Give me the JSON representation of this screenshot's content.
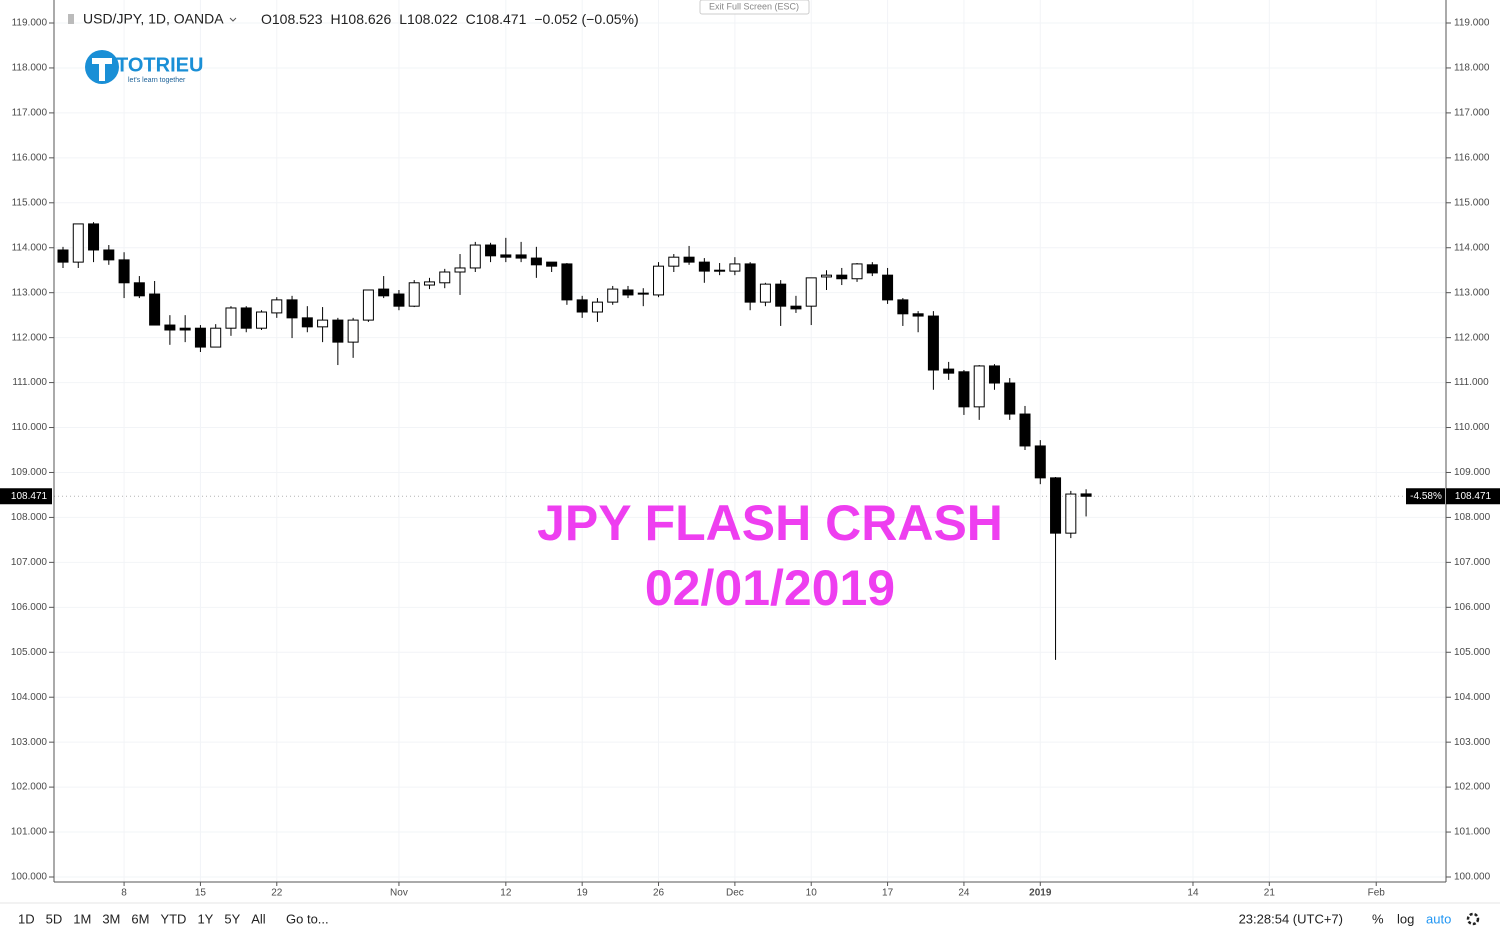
{
  "header": {
    "symbol": "USD/JPY, 1D, OANDA",
    "ohlc_labels": [
      "O",
      "H",
      "L",
      "C"
    ],
    "change": "−0.052 (−0.05%)",
    "exit_fullscreen": "Exit Full Screen (ESC)"
  },
  "logo": {
    "name": "TOTRIEU",
    "tagline": "let's learn together"
  },
  "annotation": {
    "line1": "JPY FLASH CRASH",
    "line2": "02/01/2019"
  },
  "last_price_change": "-4.58%",
  "toolbar": {
    "ranges": [
      "1D",
      "5D",
      "1M",
      "3M",
      "6M",
      "YTD",
      "1Y",
      "5Y",
      "All"
    ],
    "goto": "Go to...",
    "clock": "23:28:54 (UTC+7)",
    "percent": "%",
    "log": "log",
    "auto": "auto"
  },
  "chart_data": {
    "type": "candlestick",
    "up_color": "#ffffff",
    "down_color": "#000000",
    "border_color": "#000000",
    "grid": true,
    "categories": [
      null,
      null,
      null,
      null,
      "8",
      null,
      null,
      null,
      null,
      "15",
      null,
      null,
      null,
      null,
      "22",
      null,
      null,
      null,
      null,
      null,
      null,
      null,
      "Nov",
      null,
      null,
      null,
      null,
      null,
      null,
      "12",
      null,
      null,
      null,
      null,
      "19",
      null,
      null,
      null,
      null,
      "26",
      null,
      null,
      null,
      null,
      "Dec",
      null,
      null,
      null,
      null,
      "10",
      null,
      null,
      null,
      null,
      "17",
      null,
      null,
      null,
      null,
      "24",
      null,
      null,
      null,
      null,
      "2019",
      null,
      null,
      null,
      null,
      null,
      null,
      null,
      null,
      null,
      "14",
      null,
      null,
      null,
      null,
      "21",
      null,
      null,
      null,
      null,
      null,
      null,
      "Feb"
    ],
    "open": [
      113.95,
      113.68,
      114.53,
      113.95,
      113.73,
      113.22,
      112.97,
      112.28,
      112.21,
      112.21,
      111.79,
      112.21,
      112.66,
      112.21,
      112.55,
      112.84,
      112.44,
      112.24,
      112.39,
      111.9,
      112.39,
      113.08,
      112.97,
      112.7,
      113.17,
      113.22,
      113.46,
      113.55,
      114.06,
      113.84,
      113.84,
      113.77,
      113.68,
      113.64,
      112.84,
      112.57,
      112.79,
      113.06,
      112.99,
      112.95,
      113.59,
      113.79,
      113.68,
      113.5,
      113.48,
      113.64,
      112.79,
      113.19,
      112.7,
      112.7,
      113.35,
      113.39,
      113.31,
      113.62,
      113.39,
      112.84,
      112.53,
      112.48,
      111.3,
      111.24,
      110.46,
      111.37,
      110.99,
      110.3,
      109.59,
      108.88,
      107.65,
      108.523,
      null,
      null,
      null,
      null,
      null,
      null,
      null,
      null,
      null,
      null,
      null,
      null,
      null,
      null,
      null,
      null,
      null,
      null,
      null
    ],
    "high": [
      114.02,
      114.53,
      114.57,
      114.06,
      113.9,
      113.37,
      113.26,
      112.5,
      112.5,
      112.28,
      112.3,
      112.7,
      112.7,
      112.61,
      112.9,
      112.93,
      112.7,
      112.68,
      112.44,
      112.44,
      113.06,
      113.37,
      113.06,
      113.28,
      113.33,
      113.53,
      113.86,
      114.13,
      114.11,
      114.22,
      114.13,
      114.02,
      113.68,
      113.66,
      112.93,
      112.88,
      113.15,
      113.15,
      113.1,
      113.68,
      113.86,
      114.04,
      113.77,
      113.66,
      113.79,
      113.68,
      113.22,
      113.28,
      112.93,
      113.33,
      113.5,
      113.55,
      113.66,
      113.68,
      113.55,
      112.88,
      112.59,
      112.59,
      111.46,
      111.28,
      111.39,
      111.41,
      111.1,
      110.48,
      109.72,
      108.9,
      108.59,
      108.626,
      null,
      null,
      null,
      null,
      null,
      null,
      null,
      null,
      null,
      null,
      null,
      null,
      null,
      null,
      null,
      null,
      null,
      null,
      null
    ],
    "low": [
      113.55,
      113.55,
      113.68,
      113.62,
      112.88,
      112.88,
      112.28,
      111.84,
      111.9,
      111.68,
      111.79,
      112.04,
      112.12,
      112.17,
      112.44,
      111.99,
      112.12,
      111.9,
      111.39,
      111.55,
      112.35,
      112.88,
      112.61,
      112.68,
      113.08,
      113.1,
      112.95,
      113.46,
      113.68,
      113.68,
      113.68,
      113.33,
      113.46,
      112.73,
      112.44,
      112.35,
      112.73,
      112.88,
      112.7,
      112.9,
      113.46,
      113.62,
      113.22,
      113.39,
      113.39,
      112.61,
      112.7,
      112.26,
      112.55,
      112.28,
      113.06,
      113.17,
      113.24,
      113.37,
      112.75,
      112.26,
      112.12,
      110.84,
      111.06,
      110.28,
      110.17,
      110.84,
      110.17,
      109.5,
      108.74,
      104.83,
      107.54,
      108.022,
      null,
      null,
      null,
      null,
      null,
      null,
      null,
      null,
      null,
      null,
      null,
      null,
      null,
      null,
      null,
      null,
      null,
      null,
      null
    ],
    "close": [
      113.68,
      114.53,
      113.95,
      113.73,
      113.22,
      112.93,
      112.28,
      112.17,
      112.17,
      111.79,
      112.21,
      112.66,
      112.21,
      112.57,
      112.84,
      112.44,
      112.24,
      112.39,
      111.9,
      112.39,
      113.06,
      112.93,
      112.7,
      113.22,
      113.24,
      113.46,
      113.55,
      114.06,
      113.82,
      113.79,
      113.77,
      113.62,
      113.59,
      112.84,
      112.57,
      112.79,
      113.08,
      112.95,
      112.97,
      113.59,
      113.79,
      113.68,
      113.48,
      113.48,
      113.64,
      112.79,
      113.19,
      112.7,
      112.64,
      113.33,
      113.39,
      113.31,
      113.64,
      113.44,
      112.84,
      112.53,
      112.48,
      111.28,
      111.21,
      110.46,
      111.37,
      110.99,
      110.3,
      109.59,
      108.88,
      107.65,
      108.52,
      108.471,
      null,
      null,
      null,
      null,
      null,
      null,
      null,
      null,
      null,
      null,
      null,
      null,
      null,
      null,
      null,
      null,
      null,
      null,
      null
    ],
    "ylim": [
      100,
      119
    ],
    "yticks": [
      {
        "value": 100,
        "label": "100.000"
      },
      {
        "value": 101,
        "label": "101.000"
      },
      {
        "value": 102,
        "label": "102.000"
      },
      {
        "value": 103,
        "label": "103.000"
      },
      {
        "value": 104,
        "label": "104.000"
      },
      {
        "value": 105,
        "label": "105.000"
      },
      {
        "value": 106,
        "label": "106.000"
      },
      {
        "value": 107,
        "label": "107.000"
      },
      {
        "value": 108,
        "label": "108.000"
      },
      {
        "value": 109,
        "label": "109.000"
      },
      {
        "value": 110,
        "label": "110.000"
      },
      {
        "value": 111,
        "label": "111.000"
      },
      {
        "value": 112,
        "label": "112.000"
      },
      {
        "value": 113,
        "label": "113.000"
      },
      {
        "value": 114,
        "label": "114.000"
      },
      {
        "value": 115,
        "label": "115.000"
      },
      {
        "value": 116,
        "label": "116.000"
      },
      {
        "value": 117,
        "label": "117.000"
      },
      {
        "value": 118,
        "label": "118.000"
      },
      {
        "value": 119,
        "label": "119.000"
      }
    ]
  }
}
